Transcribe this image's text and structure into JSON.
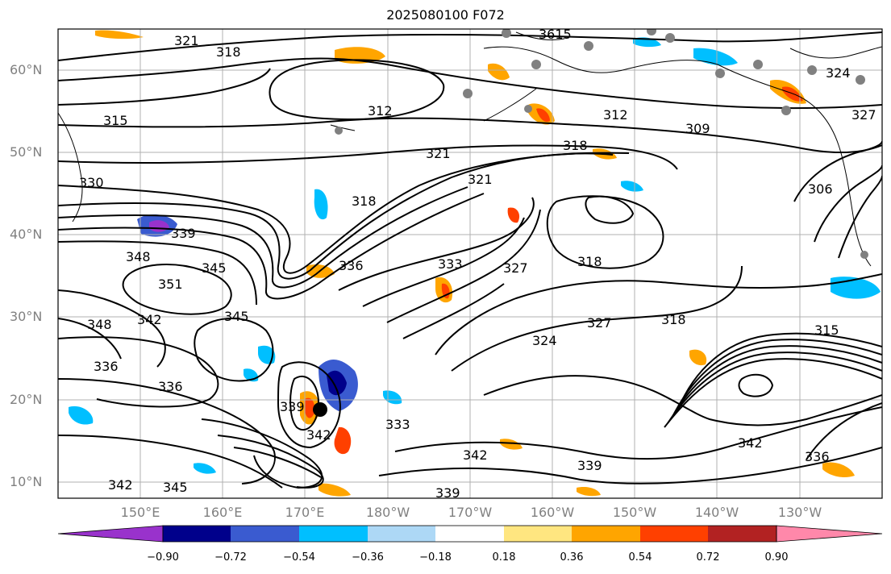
{
  "title": "2025080100 F072",
  "colors": {
    "land_outline": "#000000",
    "grid": "#b0b0b0",
    "contour": "#000000",
    "station_marker": "#808080",
    "storm_marker": "#000000"
  },
  "axes": {
    "lat_labels": [
      "60°N",
      "50°N",
      "40°N",
      "30°N",
      "20°N",
      "10°N"
    ],
    "lon_labels": [
      "150°E",
      "160°E",
      "170°E",
      "180°W",
      "170°W",
      "160°W",
      "150°W",
      "140°W",
      "130°W"
    ]
  },
  "colorbar": {
    "tick_labels": [
      "−0.90",
      "−0.72",
      "−0.54",
      "−0.36",
      "−0.18",
      "0.18",
      "0.36",
      "0.54",
      "0.72",
      "0.90"
    ],
    "colors": [
      "#9932cc",
      "#00008b",
      "#3a5bd0",
      "#00bfff",
      "#add8f6",
      "#ffffff",
      "#ffe680",
      "#ffa500",
      "#ff4000",
      "#b22222",
      "#ff88aa"
    ]
  },
  "contour_labels": [
    "321",
    "318",
    "3615",
    "315",
    "312",
    "312",
    "309",
    "321",
    "318",
    "321",
    "318",
    "330",
    "339",
    "348",
    "345",
    "351",
    "336",
    "333",
    "318",
    "327",
    "348",
    "342",
    "345",
    "336",
    "336",
    "339",
    "342",
    "333",
    "324",
    "327",
    "318",
    "315",
    "342",
    "339",
    "342",
    "336",
    "339",
    "342",
    "345",
    "306",
    "324",
    "327"
  ]
}
